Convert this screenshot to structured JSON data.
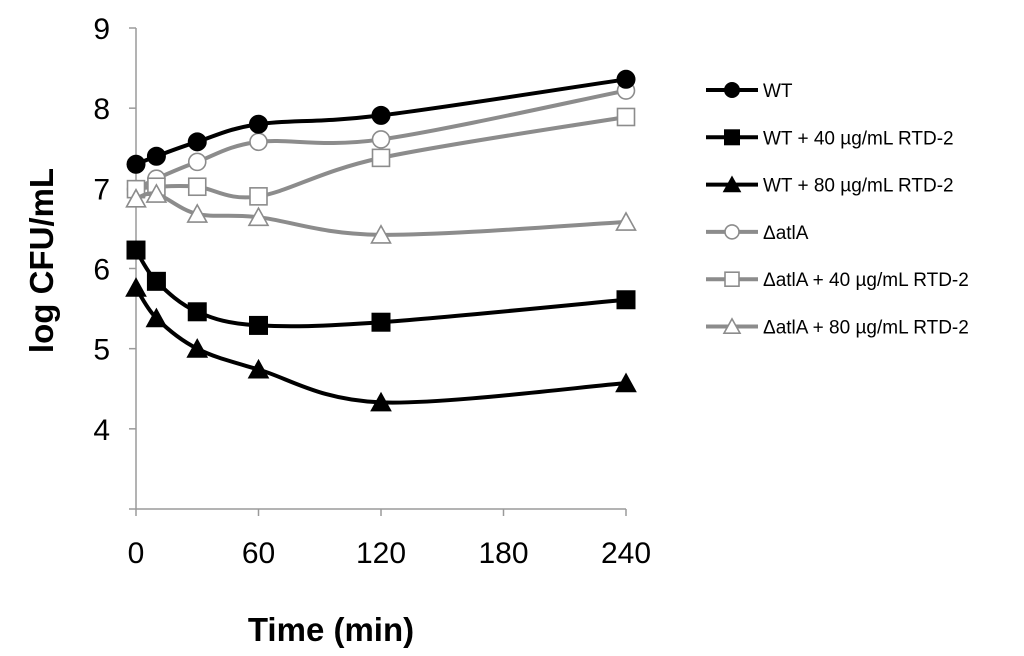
{
  "chart_data": {
    "type": "line",
    "title": "",
    "xlabel": "Time (min)",
    "ylabel": "log CFU/mL",
    "xlim": [
      0,
      240
    ],
    "ylim": [
      3,
      9
    ],
    "x_ticks": [
      0,
      60,
      120,
      180,
      240
    ],
    "x_tick_labels": [
      "0",
      "60",
      "120",
      "180",
      "240"
    ],
    "y_ticks": [
      4,
      5,
      6,
      7,
      8,
      9
    ],
    "y_tick_labels": [
      "4",
      "5",
      "6",
      "7",
      "8",
      "9"
    ],
    "grid": false,
    "legend_position": "right",
    "x": [
      0,
      10,
      30,
      60,
      120,
      240
    ],
    "series": [
      {
        "name": "WT",
        "color": "#000000",
        "marker": "circle",
        "filled": true,
        "values": [
          7.3,
          7.4,
          7.58,
          7.8,
          7.91,
          8.36
        ]
      },
      {
        "name": "WT + 40 µg/mL RTD-2",
        "color": "#000000",
        "marker": "square",
        "filled": true,
        "values": [
          6.23,
          5.84,
          5.46,
          5.29,
          5.33,
          5.61
        ]
      },
      {
        "name": "WT + 80 µg/mL RTD-2",
        "color": "#000000",
        "marker": "triangle",
        "filled": true,
        "values": [
          5.76,
          5.38,
          5.0,
          4.74,
          4.33,
          4.57
        ]
      },
      {
        "name": "ΔatlA",
        "color": "#8c8c8c",
        "marker": "circle",
        "filled": false,
        "values": [
          6.99,
          7.12,
          7.33,
          7.58,
          7.61,
          8.22
        ]
      },
      {
        "name": "ΔatlA + 40 µg/mL RTD-2",
        "color": "#8c8c8c",
        "marker": "square",
        "filled": false,
        "values": [
          6.99,
          7.02,
          7.02,
          6.9,
          7.38,
          7.89
        ]
      },
      {
        "name": "ΔatlA + 80 µg/mL RTD-2",
        "color": "#8c8c8c",
        "marker": "triangle",
        "filled": false,
        "values": [
          6.87,
          6.93,
          6.68,
          6.64,
          6.42,
          6.58
        ]
      }
    ]
  }
}
